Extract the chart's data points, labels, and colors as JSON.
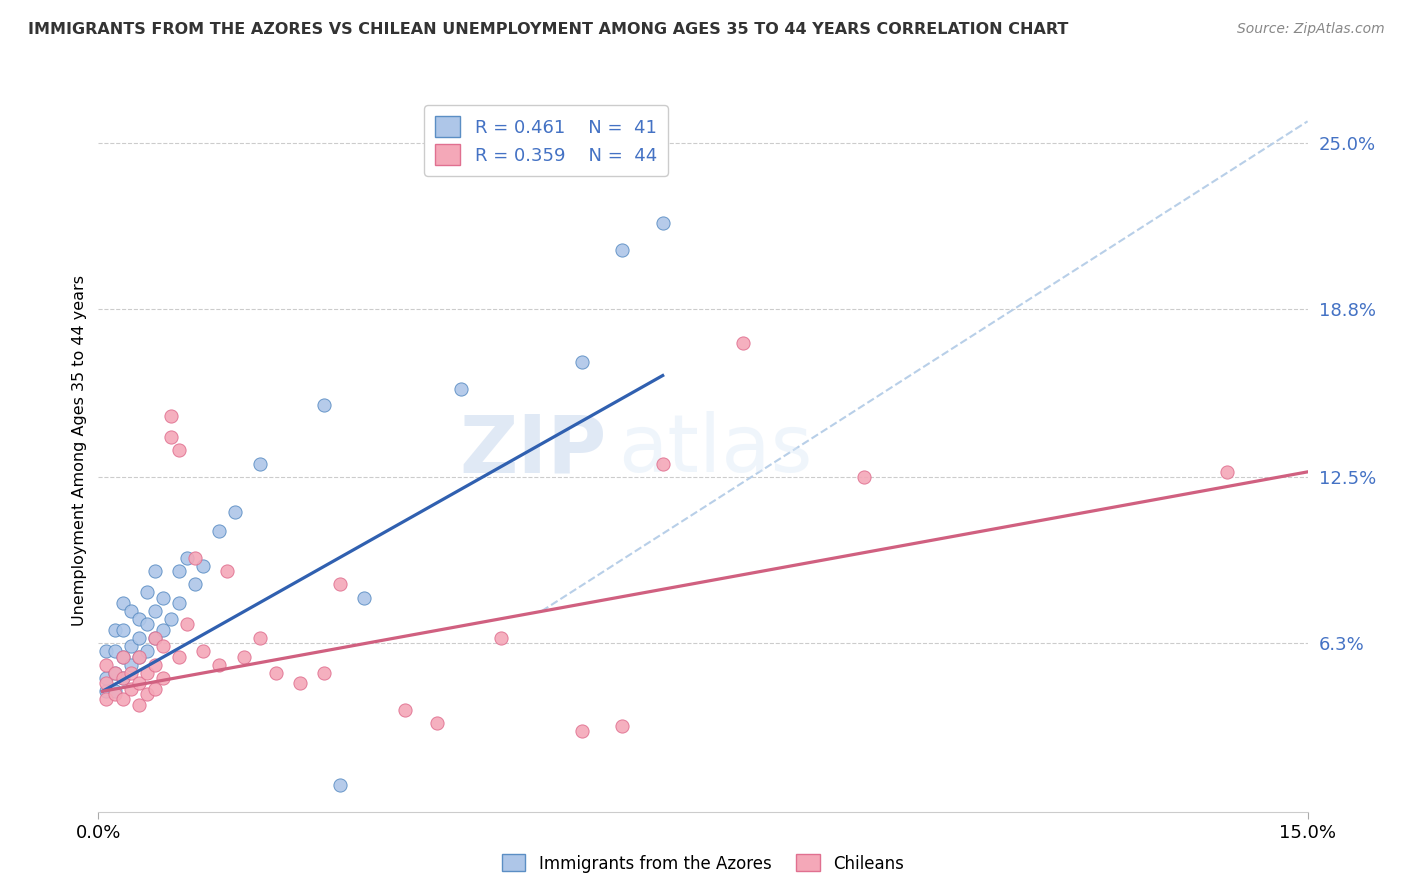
{
  "title": "IMMIGRANTS FROM THE AZORES VS CHILEAN UNEMPLOYMENT AMONG AGES 35 TO 44 YEARS CORRELATION CHART",
  "source": "Source: ZipAtlas.com",
  "xlabel_ticks": [
    "0.0%",
    "15.0%"
  ],
  "ylabel_ticks_labels": [
    "6.3%",
    "12.5%",
    "18.8%",
    "25.0%"
  ],
  "ylabel_ticks_values": [
    0.063,
    0.125,
    0.188,
    0.25
  ],
  "xmin": 0.0,
  "xmax": 0.15,
  "ymin": 0.0,
  "ymax": 0.27,
  "legend_label1": "Immigrants from the Azores",
  "legend_label2": "Chileans",
  "R1": "0.461",
  "N1": "41",
  "R2": "0.359",
  "N2": "44",
  "color_azores_fill": "#aec6e8",
  "color_chilean_fill": "#f4a8b8",
  "color_azores_edge": "#5b8ec4",
  "color_chilean_edge": "#e07090",
  "color_azores_line": "#3060b0",
  "color_chilean_line": "#d06080",
  "color_dashed": "#b8cfe8",
  "color_ytick": "#4472c4",
  "watermark_zip": "ZIP",
  "watermark_atlas": "atlas",
  "azores_x": [
    0.001,
    0.001,
    0.001,
    0.002,
    0.002,
    0.002,
    0.002,
    0.003,
    0.003,
    0.003,
    0.003,
    0.004,
    0.004,
    0.004,
    0.005,
    0.005,
    0.005,
    0.006,
    0.006,
    0.006,
    0.007,
    0.007,
    0.007,
    0.008,
    0.008,
    0.009,
    0.01,
    0.01,
    0.011,
    0.012,
    0.013,
    0.015,
    0.017,
    0.02,
    0.028,
    0.03,
    0.033,
    0.045,
    0.06,
    0.065,
    0.07
  ],
  "azores_y": [
    0.045,
    0.05,
    0.06,
    0.045,
    0.052,
    0.06,
    0.068,
    0.05,
    0.058,
    0.068,
    0.078,
    0.055,
    0.062,
    0.075,
    0.058,
    0.065,
    0.072,
    0.06,
    0.07,
    0.082,
    0.065,
    0.075,
    0.09,
    0.068,
    0.08,
    0.072,
    0.078,
    0.09,
    0.095,
    0.085,
    0.092,
    0.105,
    0.112,
    0.13,
    0.152,
    0.01,
    0.08,
    0.158,
    0.168,
    0.21,
    0.22
  ],
  "chilean_x": [
    0.001,
    0.001,
    0.001,
    0.002,
    0.002,
    0.003,
    0.003,
    0.003,
    0.004,
    0.004,
    0.005,
    0.005,
    0.005,
    0.006,
    0.006,
    0.007,
    0.007,
    0.007,
    0.008,
    0.008,
    0.009,
    0.009,
    0.01,
    0.01,
    0.011,
    0.012,
    0.013,
    0.015,
    0.016,
    0.018,
    0.02,
    0.022,
    0.025,
    0.028,
    0.03,
    0.038,
    0.042,
    0.05,
    0.06,
    0.065,
    0.07,
    0.08,
    0.095,
    0.14
  ],
  "chilean_y": [
    0.042,
    0.048,
    0.055,
    0.044,
    0.052,
    0.042,
    0.05,
    0.058,
    0.046,
    0.052,
    0.04,
    0.048,
    0.058,
    0.044,
    0.052,
    0.046,
    0.055,
    0.065,
    0.05,
    0.062,
    0.14,
    0.148,
    0.058,
    0.135,
    0.07,
    0.095,
    0.06,
    0.055,
    0.09,
    0.058,
    0.065,
    0.052,
    0.048,
    0.052,
    0.085,
    0.038,
    0.033,
    0.065,
    0.03,
    0.032,
    0.13,
    0.175,
    0.125,
    0.127
  ],
  "azores_line_x": [
    0.0005,
    0.07
  ],
  "azores_line_y": [
    0.045,
    0.163
  ],
  "chilean_line_x": [
    0.0005,
    0.15
  ],
  "chilean_line_y": [
    0.045,
    0.127
  ],
  "dashed_line_x": [
    0.055,
    0.15
  ],
  "dashed_line_y": [
    0.075,
    0.258
  ]
}
